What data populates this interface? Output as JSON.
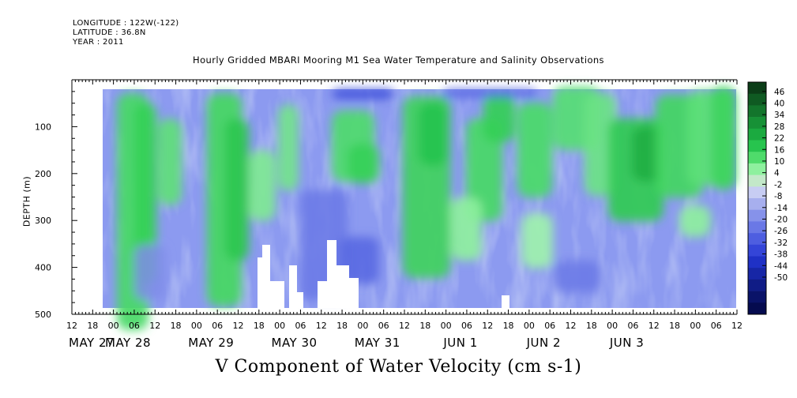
{
  "header": {
    "longitude": "LONGITUDE : 122W(-122)",
    "latitude": "LATITUDE : 36.8N",
    "year": "YEAR : 2011"
  },
  "chart_data": {
    "type": "heatmap",
    "title": "Hourly Gridded MBARI Mooring M1 Sea Water Temperature and Salinity Observations",
    "bottom_title": "V Component of Water Velocity (cm s-1)",
    "xlabel": "",
    "ylabel": "DEPTH (m)",
    "ylim": [
      500,
      0
    ],
    "y_ticks": [
      100,
      200,
      300,
      400,
      500
    ],
    "y_tick_labels": [
      "100",
      "200",
      "300",
      "400",
      "500"
    ],
    "data_depth_range_m": [
      20,
      485
    ],
    "x_hour_ticks": [
      "12",
      "18",
      "00",
      "06",
      "12",
      "18",
      "00",
      "06",
      "12",
      "18",
      "00",
      "06",
      "12",
      "18",
      "00",
      "06",
      "12",
      "18",
      "00",
      "06",
      "12",
      "18",
      "00",
      "06",
      "12",
      "18",
      "00",
      "06",
      "12",
      "18",
      "00",
      "06",
      "12"
    ],
    "x_date_labels": [
      "MAY 27",
      "MAY 28",
      "MAY 29",
      "MAY 30",
      "MAY 31",
      "JUN  1",
      "JUN  2",
      "JUN  3"
    ],
    "colorbar": {
      "tick_labels": [
        "46",
        "40",
        "34",
        "28",
        "22",
        "16",
        "10",
        "4",
        "-2",
        "-8",
        "-14",
        "-20",
        "-26",
        "-32",
        "-38",
        "-44",
        "-50"
      ],
      "colors": [
        "#0b3d17",
        "#0f5a22",
        "#13752c",
        "#179136",
        "#1baa40",
        "#27c44e",
        "#4fdb6b",
        "#8ef09e",
        "#c3e8c9",
        "#c7cdf3",
        "#a7afee",
        "#8692ea",
        "#6a78e6",
        "#4e5ee0",
        "#3445d8",
        "#1f31c6",
        "#1726a6",
        "#101c86",
        "#0a1368",
        "#050b4f"
      ]
    },
    "grid": false,
    "legend": "right colorbar"
  }
}
